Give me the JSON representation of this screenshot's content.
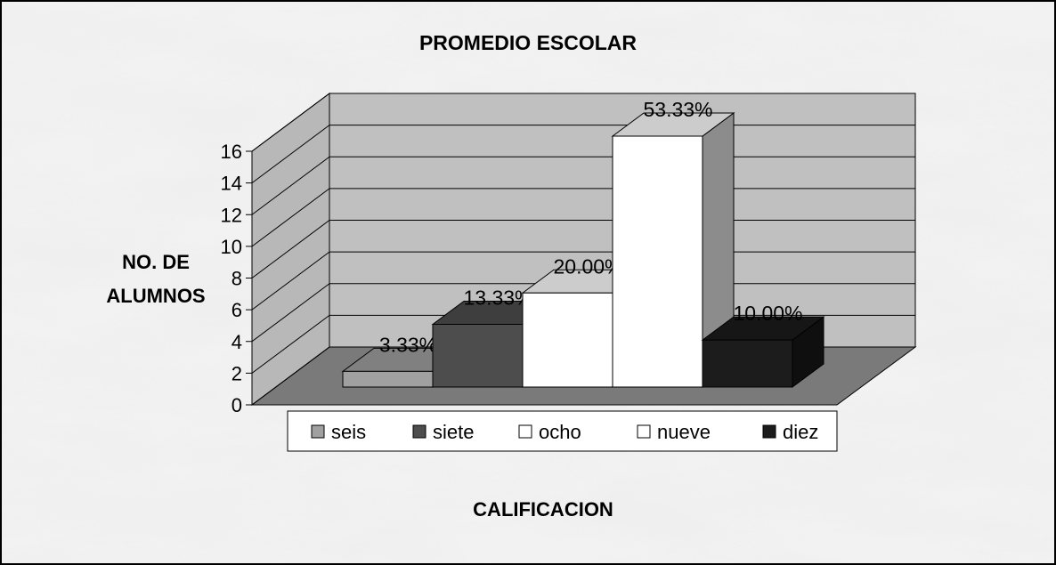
{
  "chart_data": {
    "type": "bar3d",
    "title": "PROMEDIO ESCOLAR",
    "y_label_lines": [
      "NO. DE",
      "ALUMNOS"
    ],
    "x_label": "CALIFICACION",
    "ylim": [
      0,
      16
    ],
    "yticks": [
      0,
      2,
      4,
      6,
      8,
      10,
      12,
      14,
      16
    ],
    "grid": true,
    "legend": "bottom",
    "series": [
      {
        "name": "seis",
        "color": "#a0a0a0",
        "values": [
          1
        ],
        "shares": [
          3.33
        ],
        "share_labels": [
          "3.33%"
        ]
      },
      {
        "name": "siete",
        "color": "#4d4d4d",
        "values": [
          4
        ],
        "shares": [
          13.33
        ],
        "share_labels": [
          "13.33%"
        ]
      },
      {
        "name": "ocho",
        "color": "#ffffff",
        "values": [
          6
        ],
        "shares": [
          20.0
        ],
        "share_labels": [
          "20.00%"
        ]
      },
      {
        "name": "nueve",
        "color": "#ffffff",
        "values": [
          16
        ],
        "shares": [
          53.33
        ],
        "share_labels": [
          "53.33%"
        ]
      },
      {
        "name": "diez",
        "color": "#1c1c1c",
        "values": [
          3
        ],
        "shares": [
          10.0
        ],
        "share_labels": [
          "10.00%"
        ]
      }
    ]
  }
}
